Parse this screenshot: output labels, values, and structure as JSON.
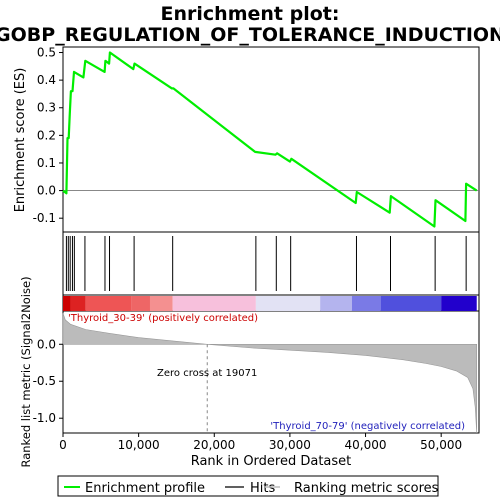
{
  "title_line1": "Enrichment plot:",
  "title_line2": "GOBP_REGULATION_OF_TOLERANCE_INDUCTION",
  "colors": {
    "enrichment": "#00ee00",
    "hit": "#000000",
    "metric_fill": "#bbbbbb",
    "zero_line": "#888888",
    "positive_label": "#cc0000",
    "negative_label": "#2222bb"
  },
  "chart_data": [
    {
      "type": "line",
      "name": "enrichment-score-panel",
      "ylabel": "Enrichment score (ES)",
      "xlim": [
        0,
        55000
      ],
      "ylim": [
        -0.15,
        0.52
      ],
      "yticks": [
        -0.1,
        0.0,
        0.1,
        0.2,
        0.3,
        0.4,
        0.5
      ],
      "ytick_labels": [
        "-0.1",
        "0.0",
        "0.1",
        "0.2",
        "0.3",
        "0.4",
        "0.5"
      ],
      "series": [
        {
          "name": "Enrichment profile",
          "points": [
            [
              0,
              0
            ],
            [
              450,
              -0.01
            ],
            [
              600,
              0.19
            ],
            [
              750,
              0.19
            ],
            [
              900,
              0.28
            ],
            [
              1050,
              0.36
            ],
            [
              1250,
              0.36
            ],
            [
              1450,
              0.43
            ],
            [
              2700,
              0.41
            ],
            [
              2950,
              0.47
            ],
            [
              5500,
              0.43
            ],
            [
              5600,
              0.47
            ],
            [
              6100,
              0.46
            ],
            [
              6200,
              0.5
            ],
            [
              9300,
              0.44
            ],
            [
              9450,
              0.46
            ],
            [
              14400,
              0.37
            ],
            [
              14600,
              0.37
            ],
            [
              25400,
              0.14
            ],
            [
              28100,
              0.13
            ],
            [
              28300,
              0.135
            ],
            [
              30000,
              0.105
            ],
            [
              30200,
              0.115
            ],
            [
              38700,
              -0.045
            ],
            [
              38850,
              -0.005
            ],
            [
              43200,
              -0.08
            ],
            [
              43350,
              -0.02
            ],
            [
              49100,
              -0.13
            ],
            [
              49250,
              -0.035
            ],
            [
              53200,
              -0.11
            ],
            [
              53300,
              0.025
            ],
            [
              54700,
              0.0
            ]
          ]
        }
      ]
    },
    {
      "type": "area",
      "name": "ranked-metric-panel",
      "ylabel": "Ranked list metric (Signal2Noise)",
      "xlabel": "Rank in Ordered Dataset",
      "xlim": [
        0,
        55000
      ],
      "ylim": [
        -1.2,
        0.45
      ],
      "yticks": [
        -1.0,
        -0.5,
        0.0
      ],
      "ytick_labels": [
        "-1.0",
        "-0.5",
        "0.0"
      ],
      "xticks": [
        0,
        10000,
        20000,
        30000,
        40000,
        50000
      ],
      "xtick_labels": [
        "0",
        "10,000",
        "20,000",
        "30,000",
        "40,000",
        "50,000"
      ],
      "zero_cross": 19071,
      "series": [
        {
          "name": "Ranking metric scores",
          "points": [
            [
              0,
              0.42
            ],
            [
              300,
              0.33
            ],
            [
              1000,
              0.27
            ],
            [
              3000,
              0.2
            ],
            [
              6000,
              0.15
            ],
            [
              10000,
              0.09
            ],
            [
              15000,
              0.04
            ],
            [
              19071,
              0.0
            ],
            [
              25000,
              -0.05
            ],
            [
              30000,
              -0.08
            ],
            [
              35000,
              -0.11
            ],
            [
              40000,
              -0.15
            ],
            [
              45000,
              -0.21
            ],
            [
              48000,
              -0.26
            ],
            [
              50000,
              -0.3
            ],
            [
              52000,
              -0.36
            ],
            [
              53500,
              -0.45
            ],
            [
              54200,
              -0.6
            ],
            [
              54500,
              -0.85
            ],
            [
              54700,
              -1.2
            ]
          ]
        }
      ]
    }
  ],
  "hits": [
    450,
    700,
    950,
    1250,
    1500,
    2900,
    5550,
    6150,
    9400,
    14500,
    25500,
    28200,
    30100,
    38800,
    43300,
    49200,
    53300
  ],
  "annotations": {
    "positive": "'Thyroid_30-39' (positively correlated)",
    "negative": "'Thyroid_70-79' (negatively correlated)",
    "zero_cross": "Zero cross at 19071"
  },
  "legend": {
    "items": [
      {
        "label": "Enrichment profile",
        "style": "line",
        "color": "#00ee00"
      },
      {
        "label": "Hits",
        "style": "line",
        "color": "#000000"
      },
      {
        "label": "Ranking metric scores",
        "style": "line",
        "color": "#bbbbbb"
      }
    ]
  },
  "color_bar": {
    "segments": [
      {
        "to": 1000,
        "color": "#cc0000"
      },
      {
        "to": 3000,
        "color": "#dd2222"
      },
      {
        "to": 9000,
        "color": "#ee5555"
      },
      {
        "to": 11500,
        "color": "#ee6666"
      },
      {
        "to": 14500,
        "color": "#f49090"
      },
      {
        "to": 25500,
        "color": "#f7c0dc"
      },
      {
        "to": 34000,
        "color": "#e2e2f4"
      },
      {
        "to": 38200,
        "color": "#b4b4ee"
      },
      {
        "to": 42000,
        "color": "#7a7ae6"
      },
      {
        "to": 50000,
        "color": "#5050dd"
      },
      {
        "to": 54700,
        "color": "#2200cc"
      }
    ]
  }
}
